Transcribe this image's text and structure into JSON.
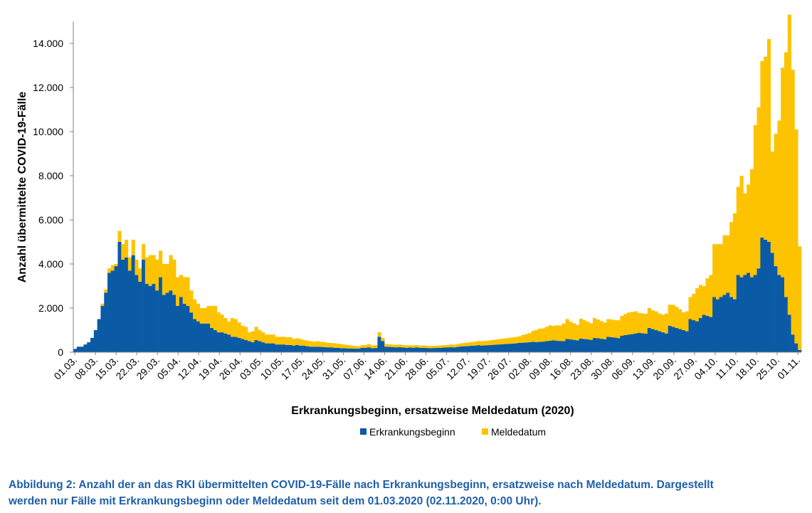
{
  "chart_data": {
    "type": "bar",
    "stacked": true,
    "xlabel": "Erkrankungsbeginn, ersatzweise Meldedatum (2020)",
    "ylabel": "Anzahl übermittelte COVID-19-Fälle",
    "ylim": [
      0,
      15000
    ],
    "y_ticks": [
      "0",
      "2.000",
      "4.000",
      "6.000",
      "8.000",
      "10.000",
      "12.000",
      "14.000"
    ],
    "x_ticks": [
      "01.03.",
      "08.03.",
      "15.03.",
      "22.03.",
      "29.03.",
      "05.04.",
      "12.04.",
      "19.04.",
      "26.04.",
      "03.05.",
      "10.05.",
      "17.05.",
      "24.05.",
      "31.05.",
      "07.06.",
      "14.06.",
      "21.06.",
      "28.06.",
      "05.07.",
      "12.07.",
      "19.07.",
      "26.07.",
      "02.08.",
      "09.08.",
      "16.08.",
      "23.08.",
      "30.08.",
      "06.09.",
      "13.09.",
      "20.09.",
      "27.09.",
      "04.10.",
      "11.10.",
      "18.10.",
      "25.10.",
      "01.11."
    ],
    "legend_position": "bottom",
    "grid": false,
    "series": [
      {
        "name": "Erkrankungsbeginn",
        "color": "#0b5aa6",
        "values": [
          150,
          250,
          250,
          350,
          450,
          650,
          1000,
          1500,
          2100,
          2700,
          3600,
          3700,
          3900,
          5000,
          4200,
          4300,
          3700,
          4400,
          3500,
          3200,
          4200,
          3100,
          3000,
          3100,
          2800,
          3400,
          2600,
          2700,
          2800,
          2600,
          2100,
          2500,
          2200,
          2100,
          1800,
          1500,
          1400,
          1300,
          1300,
          1300,
          1100,
          1000,
          900,
          900,
          850,
          800,
          700,
          700,
          650,
          600,
          550,
          500,
          450,
          550,
          500,
          450,
          400,
          400,
          400,
          350,
          350,
          350,
          330,
          330,
          300,
          330,
          300,
          300,
          270,
          250,
          250,
          250,
          240,
          230,
          220,
          220,
          200,
          200,
          180,
          180,
          170,
          170,
          160,
          160,
          200,
          200,
          220,
          180,
          190,
          700,
          500,
          250,
          240,
          230,
          220,
          230,
          210,
          200,
          210,
          200,
          220,
          200,
          200,
          190,
          180,
          190,
          200,
          200,
          210,
          220,
          230,
          220,
          240,
          260,
          270,
          280,
          290,
          300,
          320,
          300,
          310,
          320,
          330,
          340,
          350,
          360,
          370,
          380,
          390,
          400,
          420,
          430,
          440,
          450,
          470,
          460,
          470,
          480,
          500,
          520,
          540,
          520,
          510,
          500,
          600,
          580,
          560,
          540,
          620,
          600,
          580,
          560,
          650,
          630,
          610,
          590,
          700,
          680,
          660,
          640,
          750,
          780,
          800,
          820,
          850,
          880,
          860,
          840,
          1100,
          1050,
          1000,
          950,
          900,
          850,
          1200,
          1150,
          1100,
          1050,
          1000,
          950,
          1500,
          1450,
          1400,
          1550,
          1700,
          1650,
          1600,
          2500,
          2400,
          2500,
          2600,
          2700,
          2500,
          2400,
          3500,
          3400,
          3500,
          3600,
          3400,
          3500,
          3800,
          5200,
          5100,
          5000,
          4500,
          3900,
          3500,
          3400,
          2500,
          1700,
          800,
          400,
          100
        ]
      },
      {
        "name": "Meldedatum",
        "color": "#fdc300",
        "values": [
          0,
          0,
          0,
          0,
          0,
          0,
          0,
          0,
          100,
          150,
          200,
          250,
          100,
          500,
          700,
          800,
          600,
          700,
          700,
          600,
          700,
          1200,
          1400,
          1300,
          1400,
          1200,
          1400,
          1300,
          1600,
          1600,
          1300,
          1000,
          1200,
          1300,
          1000,
          900,
          800,
          700,
          700,
          800,
          1000,
          1100,
          900,
          800,
          700,
          600,
          850,
          800,
          700,
          600,
          600,
          400,
          500,
          600,
          500,
          450,
          400,
          400,
          400,
          350,
          350,
          350,
          350,
          350,
          300,
          300,
          300,
          250,
          250,
          250,
          230,
          250,
          230,
          230,
          200,
          200,
          200,
          190,
          180,
          160,
          150,
          130,
          120,
          100,
          120,
          130,
          150,
          130,
          120,
          200,
          150,
          120,
          120,
          110,
          120,
          120,
          110,
          110,
          100,
          110,
          100,
          100,
          110,
          100,
          100,
          100,
          100,
          110,
          110,
          110,
          120,
          120,
          130,
          140,
          150,
          160,
          170,
          180,
          190,
          200,
          200,
          210,
          220,
          230,
          240,
          250,
          260,
          270,
          280,
          290,
          300,
          350,
          380,
          420,
          500,
          550,
          600,
          600,
          650,
          700,
          650,
          700,
          700,
          800,
          900,
          800,
          750,
          700,
          900,
          850,
          800,
          750,
          900,
          850,
          800,
          750,
          800,
          800,
          800,
          800,
          900,
          950,
          1000,
          1000,
          1000,
          900,
          900,
          900,
          900,
          850,
          850,
          800,
          800,
          900,
          950,
          1000,
          950,
          900,
          800,
          900,
          1000,
          1200,
          1500,
          1500,
          1300,
          1700,
          1900,
          2400,
          2500,
          2400,
          2700,
          2600,
          3400,
          3900,
          4000,
          4600,
          3700,
          4000,
          4900,
          6800,
          7300,
          8000,
          8300,
          9200,
          4600,
          6000,
          7000,
          9500,
          11100,
          13600,
          12000,
          9700,
          4700
        ]
      }
    ]
  },
  "legend": {
    "items": [
      {
        "label": "Erkrankungsbeginn",
        "color": "#0b5aa6"
      },
      {
        "label": "Meldedatum",
        "color": "#fdc300"
      }
    ]
  },
  "caption": {
    "line1": "Abbildung 2: Anzahl der an das RKI übermittelten COVID-19-Fälle nach Erkrankungsbeginn, ersatzweise nach Meldedatum. Dargestellt",
    "line2": "werden nur Fälle mit Erkrankungsbeginn oder Meldedatum seit dem 01.03.2020 (02.11.2020, 0:00 Uhr)."
  }
}
